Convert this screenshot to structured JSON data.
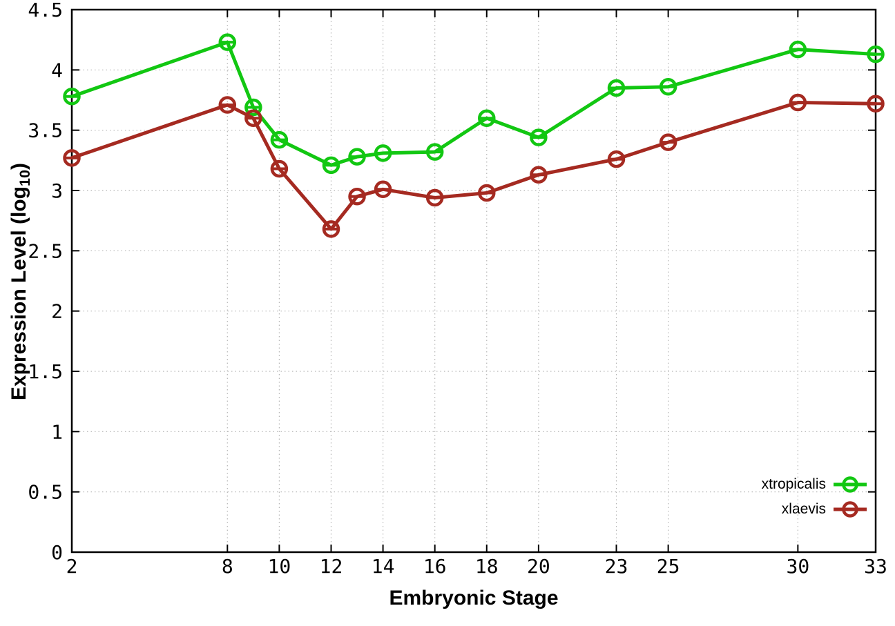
{
  "chart_data": {
    "type": "line",
    "title": "",
    "xlabel": "Embryonic Stage",
    "ylabel": "Expression Level (log10)",
    "ylabel_parts": {
      "main": "Expression Level (log",
      "sub": "10",
      "end": ")"
    },
    "xlim": [
      2,
      33
    ],
    "ylim": [
      0,
      4.5
    ],
    "xticks": [
      2,
      8,
      10,
      12,
      14,
      16,
      18,
      20,
      23,
      25,
      30,
      33
    ],
    "yticks": [
      0,
      0.5,
      1,
      1.5,
      2,
      2.5,
      3,
      3.5,
      4,
      4.5
    ],
    "grid": true,
    "legend_position": "bottom-right",
    "marker": "open-circle-with-center-dash",
    "x": [
      2,
      8,
      9,
      10,
      12,
      13,
      14,
      16,
      18,
      20,
      23,
      25,
      30,
      33
    ],
    "series": [
      {
        "name": "xtropicalis",
        "color": "#12c712",
        "values": [
          3.78,
          4.23,
          3.69,
          3.42,
          3.21,
          3.28,
          3.31,
          3.32,
          3.6,
          3.44,
          3.85,
          3.86,
          4.17,
          4.13
        ]
      },
      {
        "name": "xlaevis",
        "color": "#a52a21",
        "values": [
          3.27,
          3.71,
          3.6,
          3.18,
          2.68,
          2.95,
          3.01,
          2.94,
          2.98,
          3.13,
          3.26,
          3.4,
          3.73,
          3.72
        ]
      }
    ],
    "style": {
      "background": "#ffffff",
      "axis_color": "#000000",
      "grid_color": "#b4b4b4",
      "tick_label_color": "#000000"
    }
  },
  "legend": {
    "entries": [
      "xtropicalis",
      "xlaevis"
    ]
  }
}
